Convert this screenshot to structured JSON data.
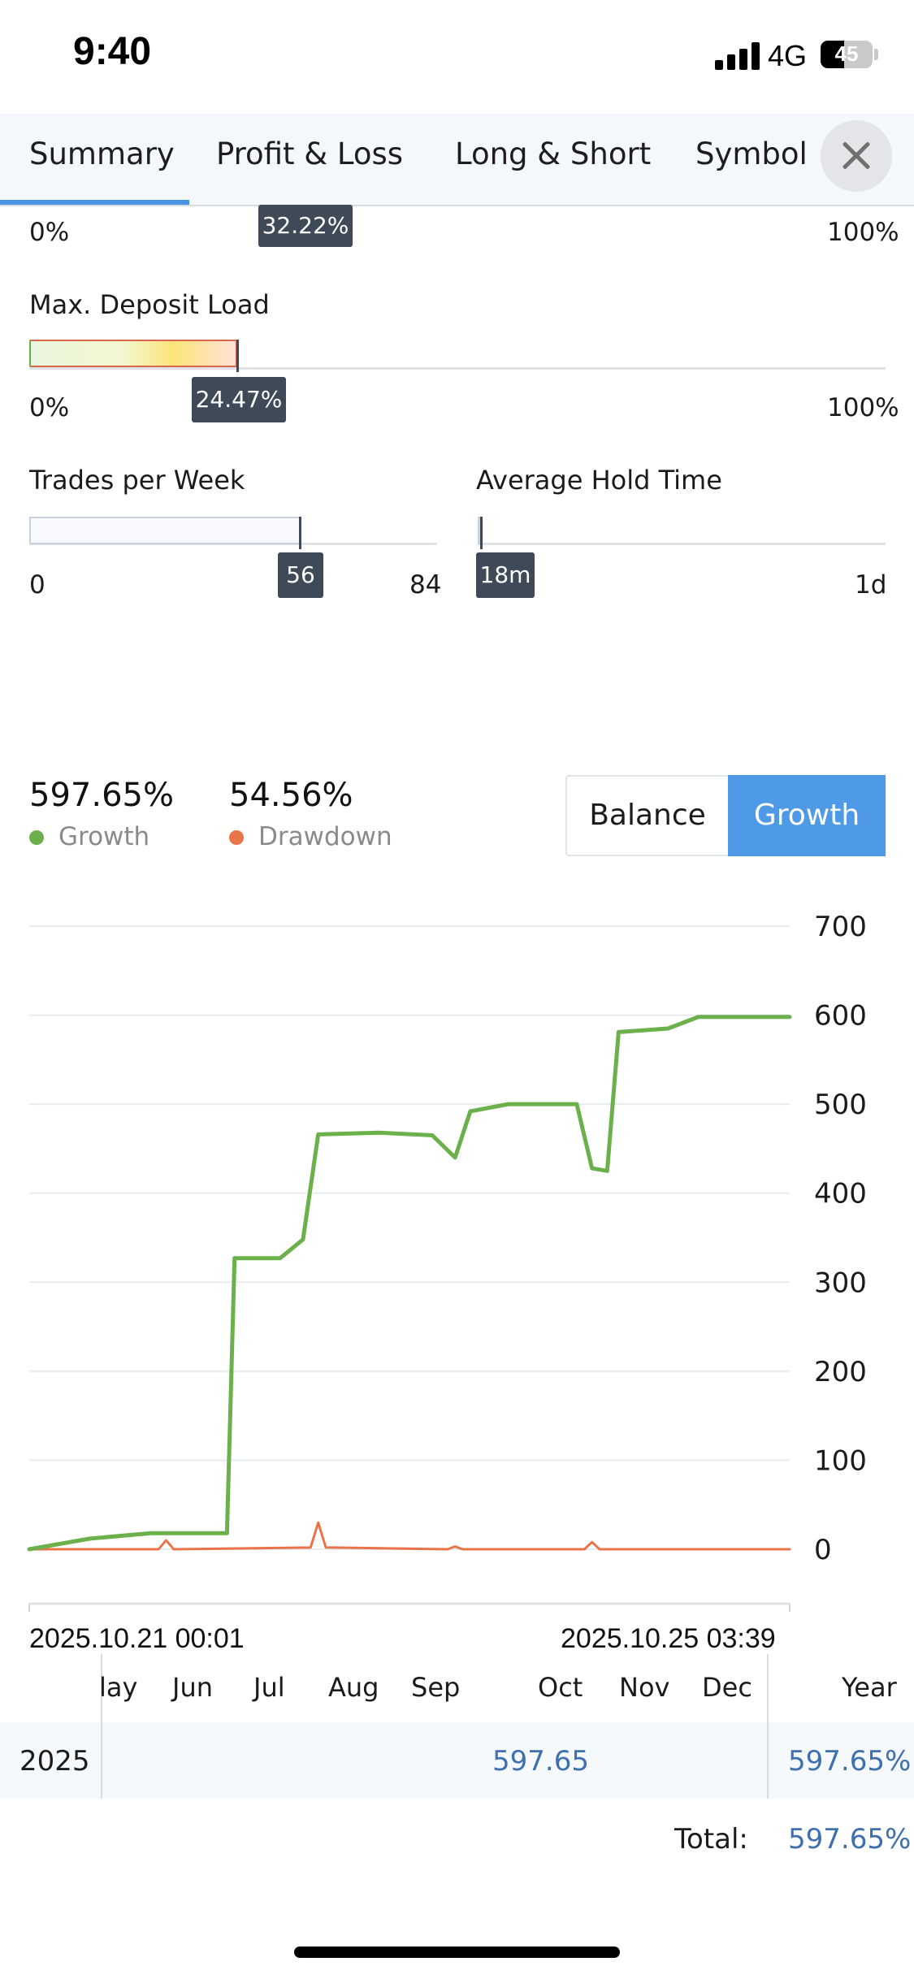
{
  "status": {
    "time": "9:40",
    "network": "4G",
    "battery": "45",
    "battery_level": 0.45
  },
  "tabs": [
    {
      "label": "Summary",
      "active": true
    },
    {
      "label": "Profit & Loss",
      "active": false
    },
    {
      "label": "Long & Short",
      "active": false
    },
    {
      "label": "Symbol",
      "active": false
    }
  ],
  "top_partial": {
    "min": "0%",
    "max": "100%",
    "value": "32.22%",
    "level": 0.3222
  },
  "max_deposit_load": {
    "title": "Max. Deposit Load",
    "min": "0%",
    "max": "100%",
    "value": "24.47%",
    "level": 0.2447
  },
  "trades_per_week": {
    "title": "Trades per Week",
    "min": "0",
    "max": "84",
    "value": "56",
    "level": 0.6667
  },
  "avg_hold_time": {
    "title": "Average Hold Time",
    "max": "1d",
    "value": "18m",
    "level": 0.0125
  },
  "stats": {
    "growth_value": "597.65%",
    "growth_label": "Growth",
    "growth_color": "#6bb04a",
    "drawdown_value": "54.56%",
    "drawdown_label": "Drawdown",
    "drawdown_color": "#e8744a"
  },
  "toggle": {
    "balance": "Balance",
    "growth": "Growth",
    "selected": "Growth"
  },
  "chart_data": {
    "type": "line",
    "ylim": [
      0,
      700
    ],
    "yticks": [
      "700",
      "600",
      "500",
      "400",
      "300",
      "200",
      "100",
      "0"
    ],
    "x_start_label": "2025.10.21 00:01",
    "x_end_label": "2025.10.25 03:39",
    "grid": true,
    "series": [
      {
        "name": "Growth",
        "color": "#6bb04a",
        "points": [
          [
            0,
            0
          ],
          [
            0.08,
            12
          ],
          [
            0.16,
            18
          ],
          [
            0.26,
            18
          ],
          [
            0.27,
            327
          ],
          [
            0.33,
            327
          ],
          [
            0.36,
            348
          ],
          [
            0.38,
            466
          ],
          [
            0.46,
            468
          ],
          [
            0.53,
            465
          ],
          [
            0.56,
            440
          ],
          [
            0.58,
            492
          ],
          [
            0.63,
            500
          ],
          [
            0.72,
            500
          ],
          [
            0.74,
            428
          ],
          [
            0.76,
            425
          ],
          [
            0.775,
            581
          ],
          [
            0.84,
            585
          ],
          [
            0.88,
            598
          ],
          [
            1,
            598
          ]
        ]
      },
      {
        "name": "Drawdown",
        "color": "#e8744a",
        "points": [
          [
            0,
            0
          ],
          [
            0.17,
            0
          ],
          [
            0.18,
            10
          ],
          [
            0.19,
            0
          ],
          [
            0.37,
            2
          ],
          [
            0.38,
            30
          ],
          [
            0.39,
            2
          ],
          [
            0.55,
            0
          ],
          [
            0.56,
            3
          ],
          [
            0.57,
            0
          ],
          [
            0.73,
            0
          ],
          [
            0.74,
            8
          ],
          [
            0.75,
            0
          ],
          [
            1,
            0
          ]
        ]
      }
    ]
  },
  "monthly": {
    "months": [
      "lay",
      "Jun",
      "Jul",
      "Aug",
      "Sep",
      "Oct",
      "Nov",
      "Dec"
    ],
    "year_header": "Year",
    "year": "2025",
    "value": "597.65",
    "year_total": "597.65%",
    "total_label": "Total:",
    "total_value": "597.65%"
  }
}
